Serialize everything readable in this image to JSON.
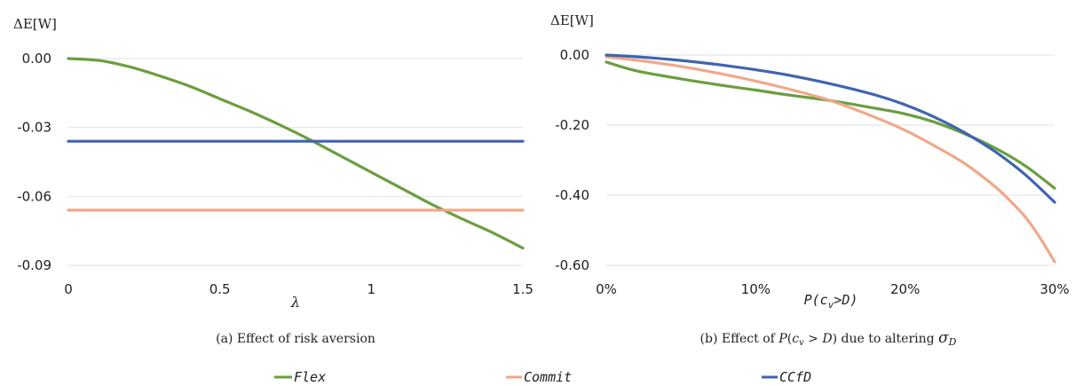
{
  "chart_data": [
    {
      "type": "line",
      "ylabel": "ΔE[W]",
      "xlabel": "λ",
      "caption": "(a) Effect of risk aversion",
      "xlim": [
        0,
        1.5
      ],
      "ylim": [
        -0.09,
        0.0
      ],
      "x_ticks": [
        "0",
        "0.5",
        "1",
        "1.5"
      ],
      "x_tick_values": [
        0,
        0.5,
        1,
        1.5
      ],
      "y_ticks": [
        "0.00",
        "-0.03",
        "-0.06",
        "-0.09"
      ],
      "y_tick_values": [
        0.0,
        -0.03,
        -0.06,
        -0.09
      ],
      "grid": true,
      "series": [
        {
          "name": "Flex",
          "color": "#6a9e3f",
          "x": [
            0,
            0.1,
            0.2,
            0.3,
            0.4,
            0.5,
            0.6,
            0.7,
            0.8,
            0.9,
            1.0,
            1.1,
            1.2,
            1.3,
            1.4,
            1.5
          ],
          "y": [
            0.0,
            -0.0008,
            -0.0035,
            -0.0075,
            -0.012,
            -0.0175,
            -0.023,
            -0.029,
            -0.0355,
            -0.0425,
            -0.0495,
            -0.0565,
            -0.0635,
            -0.0698,
            -0.0758,
            -0.0825
          ]
        },
        {
          "name": "Commit",
          "color": "#f0a88a",
          "x": [
            0,
            1.5
          ],
          "y": [
            -0.066,
            -0.066
          ]
        },
        {
          "name": "CCfD",
          "color": "#3f64b0",
          "x": [
            0,
            1.5
          ],
          "y": [
            -0.036,
            -0.036
          ]
        }
      ]
    },
    {
      "type": "line",
      "ylabel": "ΔE[W]",
      "xlabel": "P(cv>D)",
      "caption_prefix": "(b) Effect of",
      "caption_middle": "due to altering",
      "xlim": [
        0,
        30
      ],
      "ylim": [
        -0.6,
        0.0
      ],
      "x_ticks": [
        "0%",
        "10%",
        "20%",
        "30%"
      ],
      "x_tick_values": [
        0,
        10,
        20,
        30
      ],
      "y_ticks": [
        "0.00",
        "-0.20",
        "-0.40",
        "-0.60"
      ],
      "y_tick_values": [
        0.0,
        -0.2,
        -0.4,
        -0.6
      ],
      "grid": true,
      "series": [
        {
          "name": "Flex",
          "color": "#6a9e3f",
          "x": [
            0,
            2,
            5,
            8,
            10,
            12,
            15,
            18,
            20,
            22,
            24,
            26,
            28,
            30
          ],
          "y": [
            -0.02,
            -0.045,
            -0.068,
            -0.088,
            -0.1,
            -0.113,
            -0.13,
            -0.152,
            -0.168,
            -0.192,
            -0.225,
            -0.265,
            -0.315,
            -0.38
          ]
        },
        {
          "name": "Commit",
          "color": "#f0a88a",
          "x": [
            0,
            3,
            6,
            9,
            12,
            15,
            18,
            20,
            22,
            24,
            26,
            27,
            28,
            29,
            30
          ],
          "y": [
            -0.005,
            -0.02,
            -0.04,
            -0.065,
            -0.095,
            -0.13,
            -0.178,
            -0.215,
            -0.26,
            -0.31,
            -0.375,
            -0.415,
            -0.46,
            -0.52,
            -0.59
          ]
        },
        {
          "name": "CCfD",
          "color": "#3f64b0",
          "x": [
            0,
            3,
            6,
            9,
            12,
            15,
            18,
            20,
            22,
            24,
            26,
            28,
            30
          ],
          "y": [
            0.0,
            -0.008,
            -0.02,
            -0.036,
            -0.056,
            -0.082,
            -0.114,
            -0.142,
            -0.178,
            -0.222,
            -0.275,
            -0.34,
            -0.42
          ]
        }
      ]
    }
  ],
  "legend": [
    {
      "name": "Flex",
      "color": "#6a9e3f"
    },
    {
      "name": "Commit",
      "color": "#f0a88a"
    },
    {
      "name": "CCfD",
      "color": "#3f64b0"
    }
  ]
}
